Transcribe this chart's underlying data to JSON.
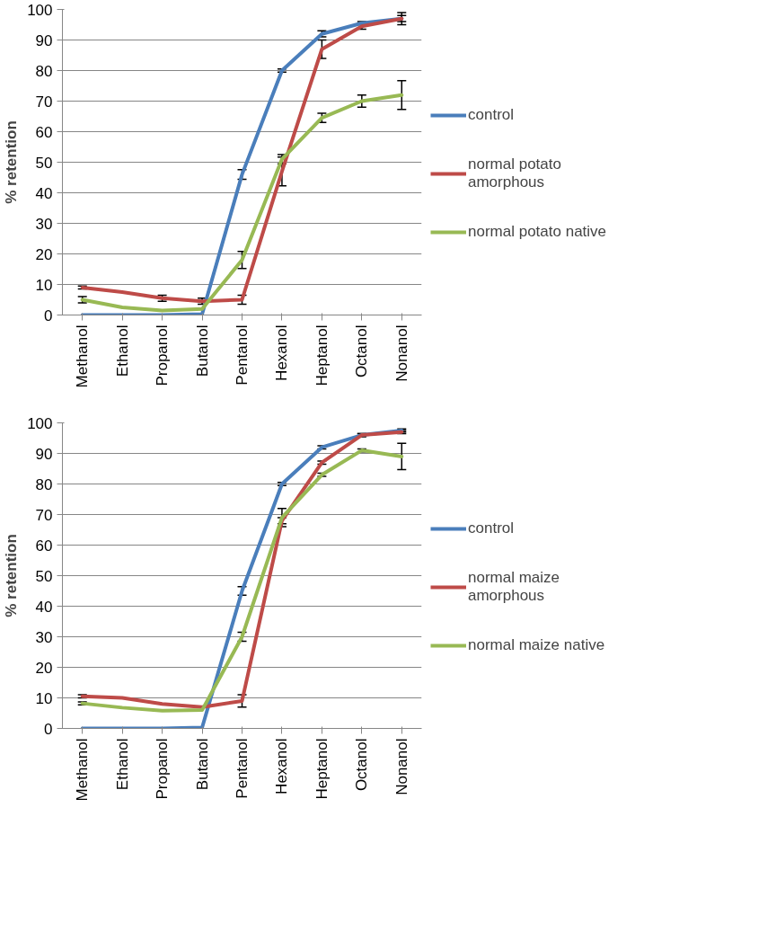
{
  "chart_data": [
    {
      "type": "line",
      "ylabel": "% retention",
      "categories": [
        "Methanol",
        "Ethanol",
        "Propanol",
        "Butanol",
        "Pentanol",
        "Hexanol",
        "Heptanol",
        "Octanol",
        "Nonanol"
      ],
      "ylim": [
        0,
        100
      ],
      "yticks": [
        0,
        10,
        20,
        30,
        40,
        50,
        60,
        70,
        80,
        90,
        100
      ],
      "grid": "y",
      "legend": "right",
      "marker": "none",
      "line_style": "solid",
      "series": [
        {
          "name": "control",
          "color": "#4a7ebb",
          "values": [
            0,
            0,
            0,
            0.3,
            46,
            80,
            92,
            95.5,
            97
          ],
          "errors": [
            null,
            null,
            null,
            null,
            1.6,
            0.5,
            1,
            0.5,
            1
          ]
        },
        {
          "name": "normal potato amorphous",
          "color": "#be4b48",
          "values": [
            9,
            7.5,
            5.5,
            4.5,
            5,
            47,
            87,
            94.5,
            97
          ],
          "errors": [
            0.5,
            null,
            1,
            1,
            1.5,
            4.7,
            3,
            1,
            2
          ]
        },
        {
          "name": "normal potato native",
          "color": "#98b954",
          "values": [
            5,
            2.5,
            1.5,
            2,
            18,
            51,
            64.5,
            70,
            72
          ],
          "errors": [
            1,
            null,
            null,
            null,
            2.8,
            1.5,
            1.5,
            2,
            4.7
          ]
        }
      ]
    },
    {
      "type": "line",
      "ylabel": "% retention",
      "categories": [
        "Methanol",
        "Ethanol",
        "Propanol",
        "Butanol",
        "Pentanol",
        "Hexanol",
        "Heptanol",
        "Octanol",
        "Nonanol"
      ],
      "ylim": [
        0,
        100
      ],
      "yticks": [
        0,
        10,
        20,
        30,
        40,
        50,
        60,
        70,
        80,
        90,
        100
      ],
      "grid": "y",
      "legend": "right",
      "marker": "none",
      "line_style": "solid",
      "series": [
        {
          "name": "control",
          "color": "#4a7ebb",
          "values": [
            0,
            0,
            0,
            0.3,
            45,
            80,
            92,
            96,
            97.5
          ],
          "errors": [
            null,
            null,
            null,
            null,
            1.4,
            0.5,
            0.5,
            0.5,
            0.5
          ]
        },
        {
          "name": "normal maize amorphous",
          "color": "#be4b48",
          "values": [
            10.5,
            10,
            8,
            7,
            9,
            68,
            87,
            96,
            97
          ],
          "errors": [
            0.5,
            null,
            null,
            null,
            2,
            1,
            0.5,
            0.5,
            0.5
          ]
        },
        {
          "name": "normal maize native",
          "color": "#98b954",
          "values": [
            8.2,
            6.8,
            5.8,
            6,
            30,
            69,
            83,
            91,
            89
          ],
          "errors": [
            0.5,
            null,
            null,
            null,
            1.5,
            3,
            0.5,
            0.5,
            4.3
          ]
        }
      ]
    }
  ]
}
